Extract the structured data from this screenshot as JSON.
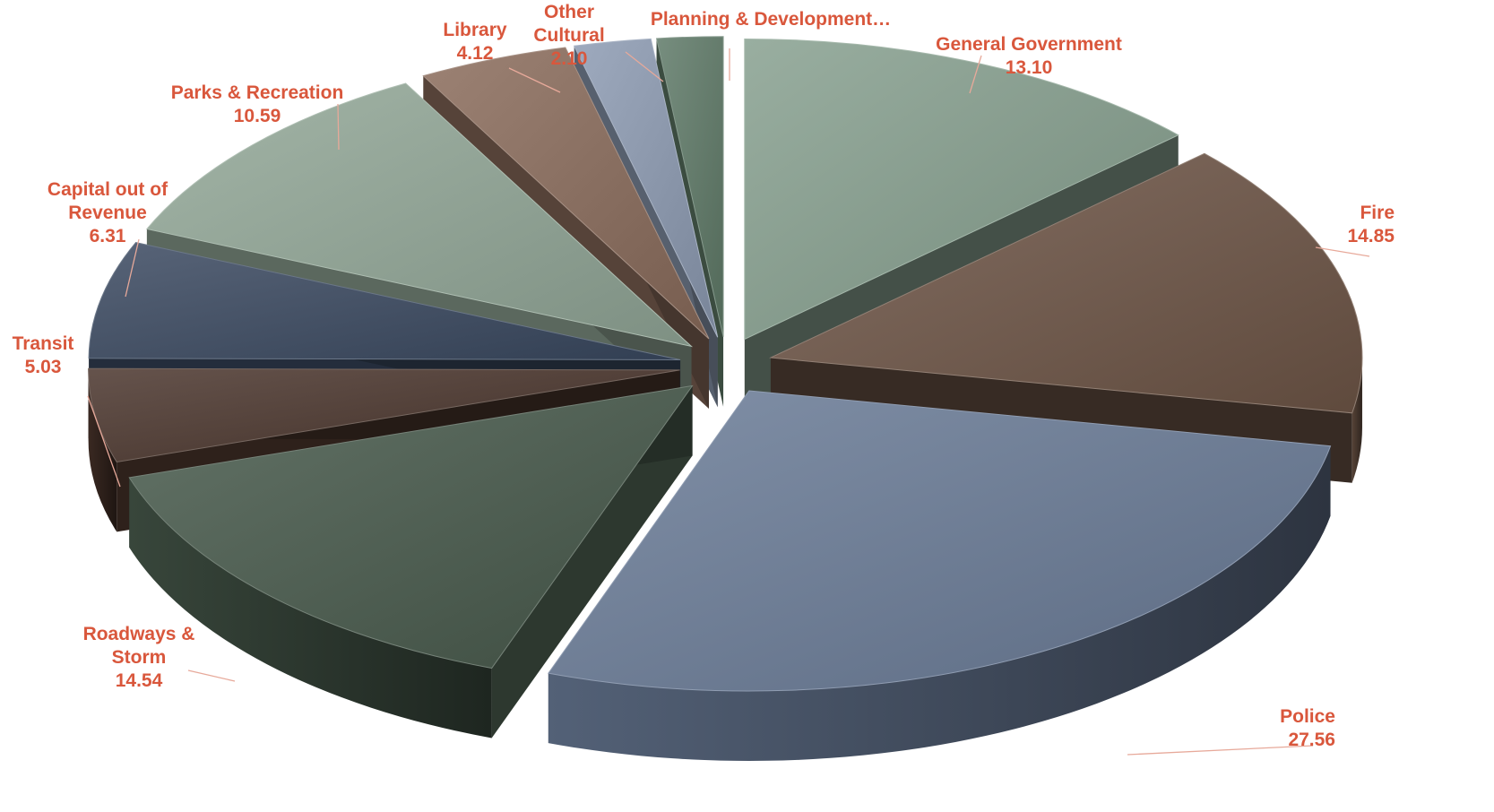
{
  "chart_data": {
    "type": "pie",
    "style": "3d-exploded",
    "label_color": "#d9573c",
    "slices": [
      {
        "label": "General Government",
        "value": 13.1,
        "color": "#87a08f",
        "label_lines": [
          "General Government"
        ],
        "value_text": "13.10"
      },
      {
        "label": "Fire",
        "value": 14.85,
        "color": "#6e5647",
        "label_lines": [
          "Fire"
        ],
        "value_text": "14.85"
      },
      {
        "label": "Police",
        "value": 27.56,
        "color": "#6b7c98",
        "label_lines": [
          "Police"
        ],
        "value_text": "27.56"
      },
      {
        "label": "Roadways & Storm",
        "value": 14.54,
        "color": "#485a4c",
        "label_lines": [
          "Roadways &",
          "Storm"
        ],
        "value_text": "14.54"
      },
      {
        "label": "Transit",
        "value": 5.03,
        "color": "#4a352c",
        "label_lines": [
          "Transit"
        ],
        "value_text": "5.03"
      },
      {
        "label": "Capital out of Revenue",
        "value": 6.31,
        "color": "#3a4960",
        "label_lines": [
          "Capital out of",
          "Revenue"
        ],
        "value_text": "6.31"
      },
      {
        "label": "Parks & Recreation",
        "value": 10.59,
        "color": "#93a898",
        "label_lines": [
          "Parks & Recreation"
        ],
        "value_text": "10.59"
      },
      {
        "label": "Library",
        "value": 4.12,
        "color": "#8a6c5c",
        "label_lines": [
          "Library"
        ],
        "value_text": "4.12"
      },
      {
        "label": "Other Cultural",
        "value": 2.1,
        "color": "#8d9bb2",
        "label_lines": [
          "Other",
          "Cultural"
        ],
        "value_text": "2.10"
      },
      {
        "label": "Planning & Development…",
        "value": 1.8,
        "color": "#5f7a68",
        "label_lines": [
          "Planning & Development…"
        ],
        "value_text": ""
      }
    ]
  }
}
